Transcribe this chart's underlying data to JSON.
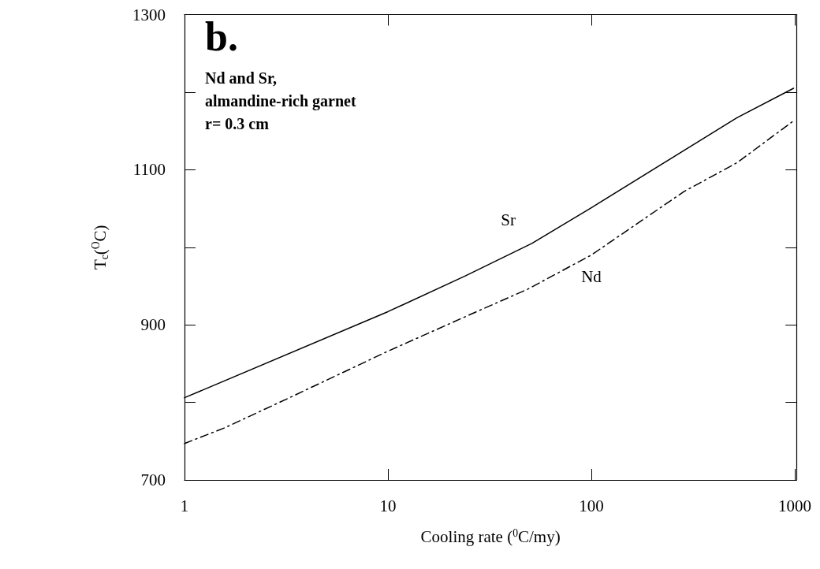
{
  "chart_data": {
    "type": "line",
    "xlabel": "Cooling rate ($^{0}$C/my)",
    "ylabel": "T$_{c}$($^{O}$C)",
    "log": "x",
    "xlim": [
      1,
      1020
    ],
    "xticks": [
      1,
      10,
      100,
      1000
    ],
    "ylim": [
      700,
      1300
    ],
    "yticks": [
      700,
      {
        "value": 800,
        "label": null
      },
      900,
      {
        "value": 1000,
        "label": null
      },
      1100,
      {
        "value": 1200,
        "label": null
      },
      1300
    ],
    "grid": false,
    "legend": false,
    "marker": "none",
    "annotations": [
      "b.",
      "Nd and Sr,\nalmandine-rich garnet\nr= 0.3 cm"
    ],
    "series": [
      {
        "name": "Sr",
        "color": "#000000",
        "line_style": "solid",
        "x": [
          1,
          10,
          24,
          51,
          100,
          520,
          987
        ],
        "values": [
          806,
          917,
          963,
          1005,
          1051,
          1167,
          1205
        ]
      },
      {
        "name": "Nd",
        "color": "#000000",
        "line_style": "dashed",
        "x": [
          1,
          1.57,
          3.28,
          10,
          28.4,
          48.7,
          100,
          286,
          520,
          987
        ],
        "values": [
          747,
          767,
          806,
          866,
          919,
          946,
          990,
          1072,
          1109,
          1163
        ]
      }
    ]
  }
}
